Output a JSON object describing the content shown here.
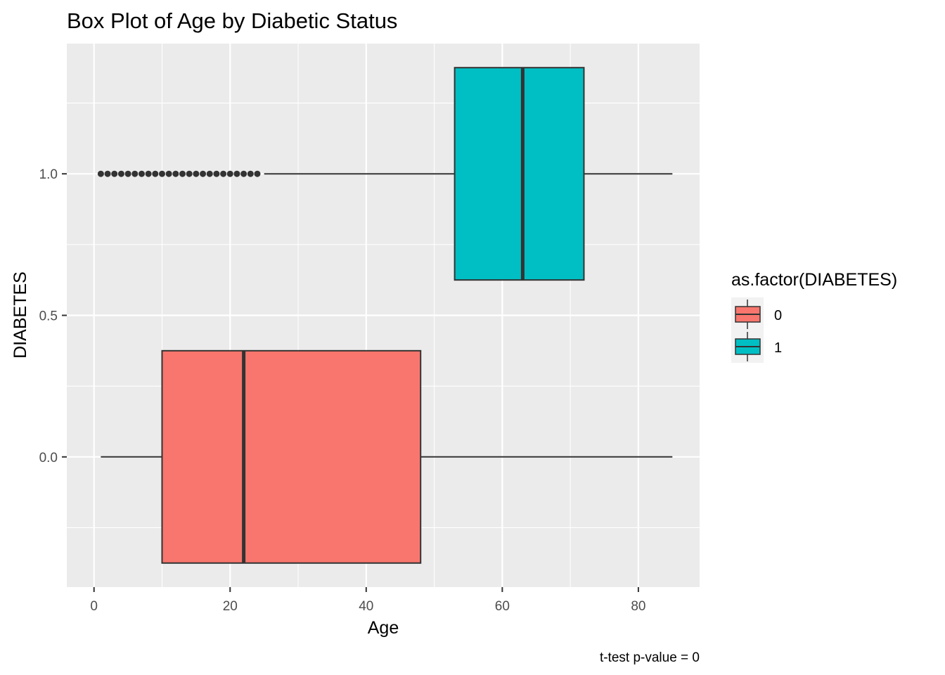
{
  "chart_data": {
    "type": "boxplot",
    "title": "Box Plot of Age by Diabetic Status",
    "xlabel": "Age",
    "ylabel": "DIABETES",
    "caption": "t-test p-value = 0",
    "xlim": [
      -4,
      89
    ],
    "ylim": [
      -0.46,
      1.46
    ],
    "x_ticks": [
      0,
      20,
      40,
      60,
      80
    ],
    "x_tick_labels": [
      "0",
      "20",
      "40",
      "60",
      "80"
    ],
    "y_ticks": [
      0.0,
      0.5,
      1.0
    ],
    "y_tick_labels": [
      "0.0",
      "0.5",
      "1.0"
    ],
    "grid": true,
    "panel_background": "#ebebeb",
    "legend": {
      "title": "as.factor(DIABETES)",
      "position": "right",
      "entries": [
        {
          "label": "0",
          "color": "#f8766d"
        },
        {
          "label": "1",
          "color": "#00bfc4"
        }
      ]
    },
    "series": [
      {
        "name": "0",
        "y": 0,
        "color": "#f8766d",
        "min": 1,
        "q1": 10,
        "median": 22,
        "q3": 48,
        "max": 85,
        "outliers": []
      },
      {
        "name": "1",
        "y": 1,
        "color": "#00bfc4",
        "min": 25,
        "q1": 53,
        "median": 63,
        "q3": 72,
        "max": 85,
        "outliers": [
          1,
          2,
          3,
          4,
          5,
          6,
          7,
          8,
          9,
          10,
          11,
          12,
          13,
          14,
          15,
          16,
          17,
          18,
          19,
          20,
          21,
          22,
          23,
          24
        ]
      }
    ]
  }
}
